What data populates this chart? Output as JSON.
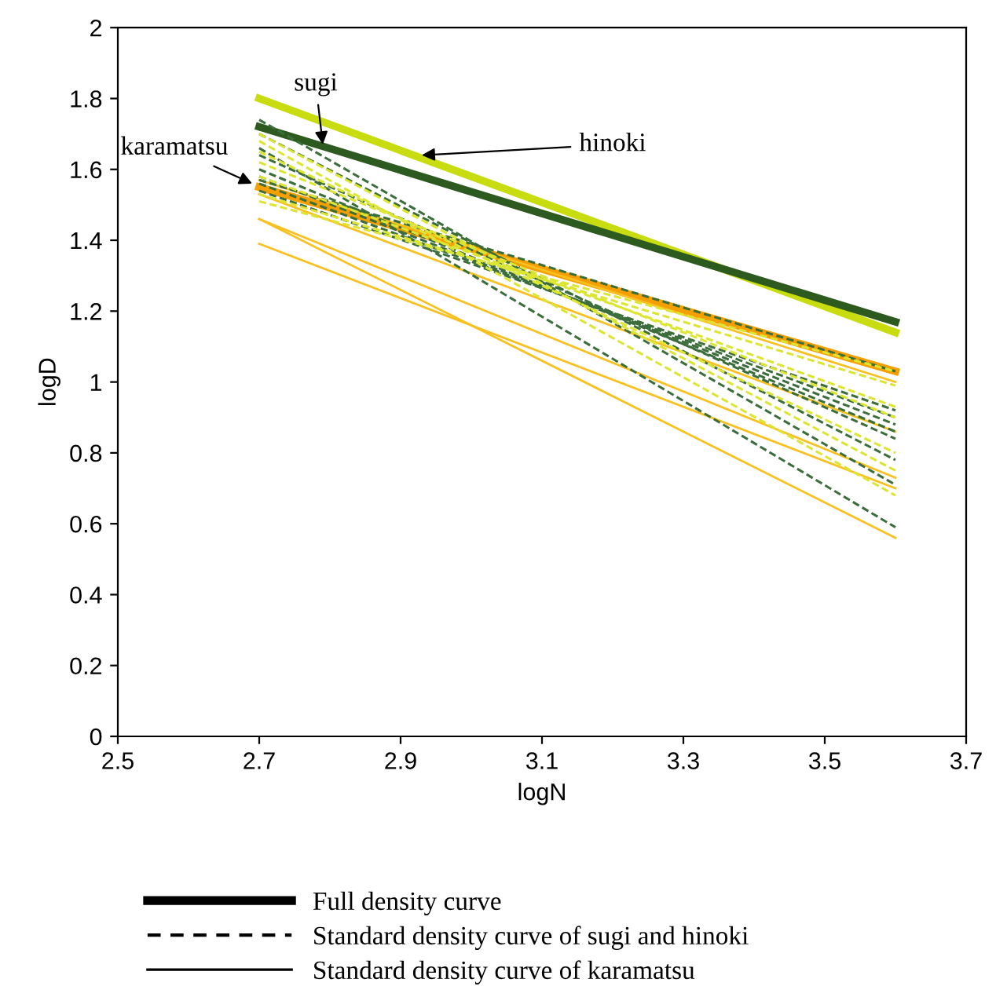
{
  "chart_data": {
    "type": "line",
    "xlabel": "logN",
    "ylabel": "logD",
    "x": [
      2.7,
      3.6
    ],
    "xlim": [
      2.5,
      3.7
    ],
    "xticks": [
      2.5,
      2.7,
      2.9,
      3.1,
      3.3,
      3.5,
      3.7
    ],
    "ylim": [
      0,
      2
    ],
    "yticks": [
      0,
      0.2,
      0.4,
      0.6,
      0.8,
      1,
      1.2,
      1.4,
      1.6,
      1.8,
      2
    ],
    "grid": false,
    "marker": "none",
    "series": [
      {
        "color": "#c8dc10",
        "values": [
          1.8,
          1.14
        ],
        "line_style": "solid"
      },
      {
        "color": "#2d5a1e",
        "values": [
          1.72,
          1.17
        ],
        "line_style": "solid"
      },
      {
        "color": "#f5a000",
        "values": [
          1.55,
          1.03
        ],
        "line_style": "solid"
      },
      {
        "color": "#f8c020",
        "values": [
          1.46,
          0.56
        ],
        "line_style": "solid"
      },
      {
        "color": "#f8c020",
        "values": [
          1.39,
          0.7
        ],
        "line_style": "solid"
      },
      {
        "color": "#f8c020",
        "values": [
          1.46,
          0.73
        ],
        "line_style": "solid"
      },
      {
        "color": "#f8c020",
        "values": [
          1.53,
          0.86
        ],
        "line_style": "solid"
      },
      {
        "color": "#f8c020",
        "values": [
          1.57,
          1.0
        ],
        "line_style": "solid"
      },
      {
        "color": "#3c6e3c",
        "values": [
          1.66,
          0.59
        ],
        "line_style": "dashed"
      },
      {
        "color": "#3c6e3c",
        "values": [
          1.74,
          0.71
        ],
        "line_style": "dashed"
      },
      {
        "color": "#3c6e3c",
        "values": [
          1.7,
          0.78
        ],
        "line_style": "dashed"
      },
      {
        "color": "#3c6e3c",
        "values": [
          1.64,
          0.84
        ],
        "line_style": "dashed"
      },
      {
        "color": "#3c6e3c",
        "values": [
          1.6,
          0.86
        ],
        "line_style": "dashed"
      },
      {
        "color": "#3c6e3c",
        "values": [
          1.58,
          0.88
        ],
        "line_style": "dashed"
      },
      {
        "color": "#3c6e3c",
        "values": [
          1.56,
          0.9
        ],
        "line_style": "dashed"
      },
      {
        "color": "#3c6e3c",
        "values": [
          1.54,
          0.92
        ],
        "line_style": "dashed"
      },
      {
        "color": "#3c6e3c",
        "values": [
          1.57,
          1.03
        ],
        "line_style": "dashed"
      },
      {
        "color": "#dce632",
        "values": [
          1.68,
          0.68
        ],
        "line_style": "dashed"
      },
      {
        "color": "#dce632",
        "values": [
          1.7,
          0.75
        ],
        "line_style": "dashed"
      },
      {
        "color": "#dce632",
        "values": [
          1.65,
          0.8
        ],
        "line_style": "dashed"
      },
      {
        "color": "#dce632",
        "values": [
          1.62,
          0.9
        ],
        "line_style": "dashed"
      },
      {
        "color": "#dce632",
        "values": [
          1.58,
          0.93
        ],
        "line_style": "dashed"
      },
      {
        "color": "#dce632",
        "values": [
          1.53,
          0.99
        ],
        "line_style": "dashed"
      },
      {
        "color": "#dce632",
        "values": [
          1.51,
          1.03
        ],
        "line_style": "dashed"
      }
    ],
    "annotations": [
      {
        "text": "sugi",
        "x": 2.79,
        "y": 1.67
      },
      {
        "text": "hinoki",
        "x": 2.93,
        "y": 1.64
      },
      {
        "text": "karamatsu",
        "x": 2.69,
        "y": 1.56
      },
      "Full density curve",
      "Standard density curve of sugi and hinoki",
      "Standard density curve of karamatsu"
    ]
  }
}
